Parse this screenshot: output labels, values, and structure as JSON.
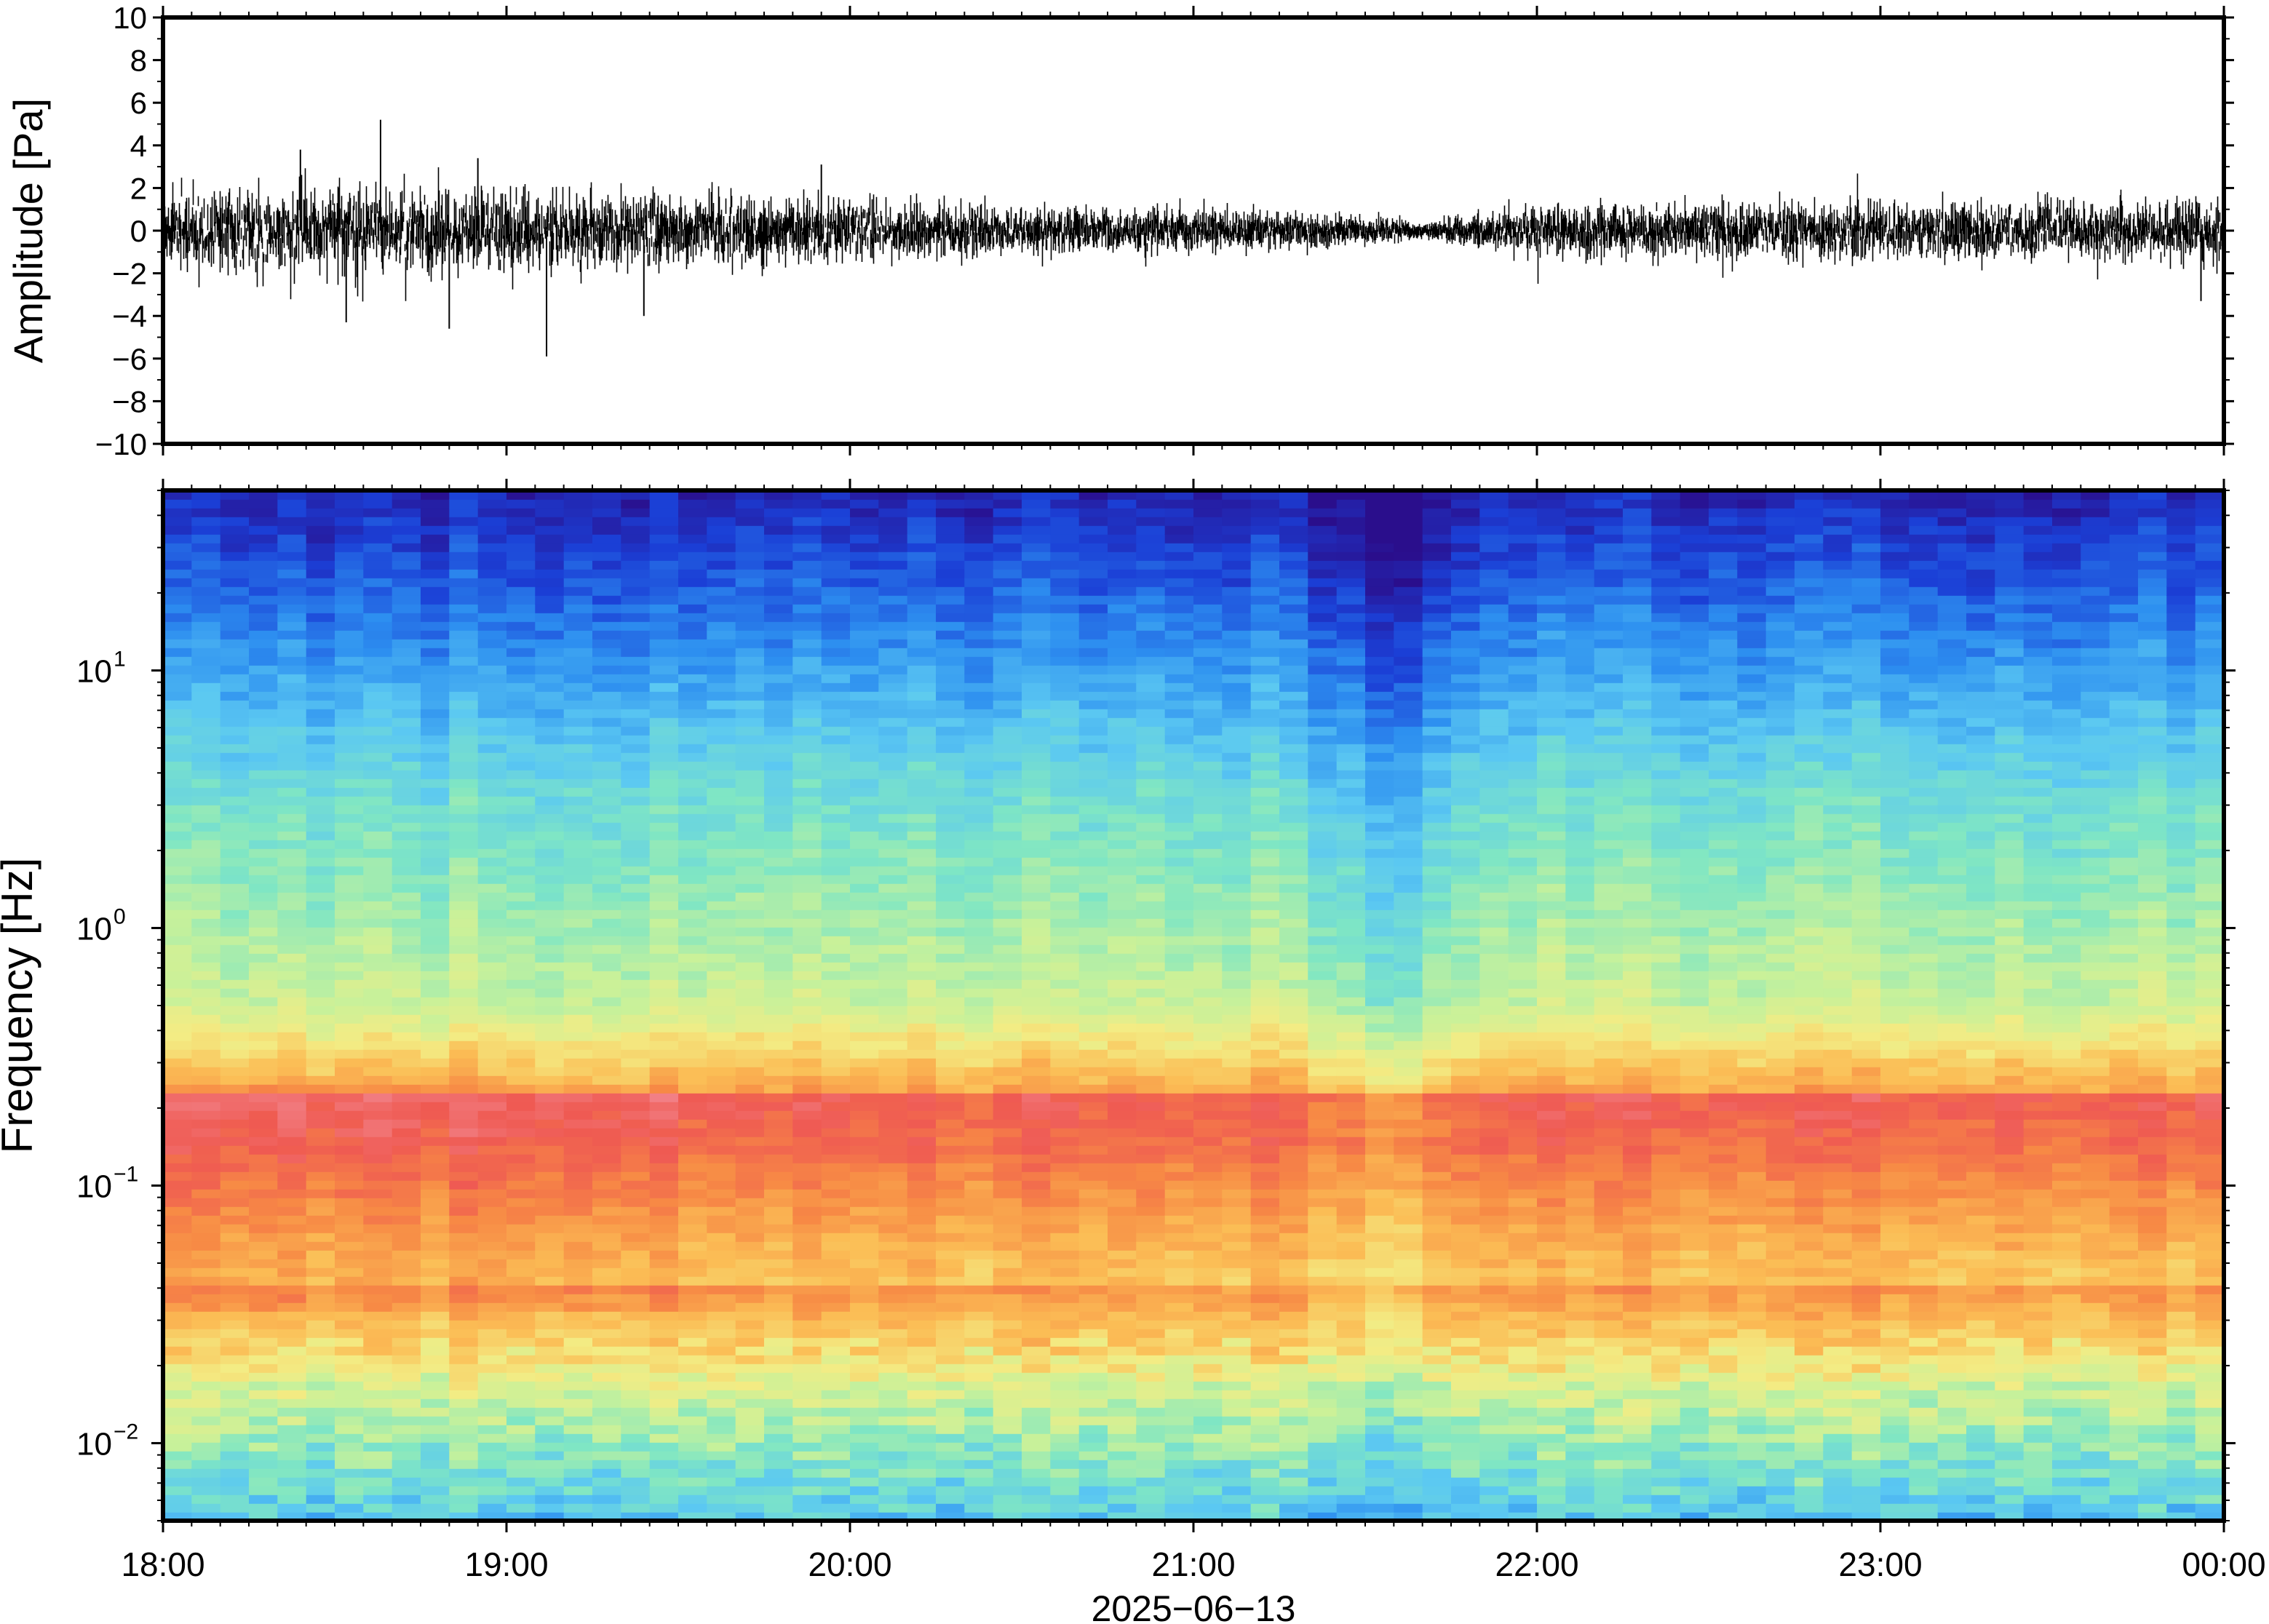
{
  "chart_data": [
    {
      "type": "line",
      "panel": "waveform",
      "ylabel": "Amplitude [Pa]",
      "ylim": [
        -10,
        10
      ],
      "yticks": [
        -10,
        -8,
        -6,
        -4,
        -2,
        0,
        2,
        4,
        6,
        8,
        10
      ],
      "ytick_labels": [
        "−10",
        "−8",
        "−6",
        "−4",
        "−2",
        "0",
        "2",
        "4",
        "6",
        "8",
        "10"
      ],
      "x_range_hours": [
        18,
        24
      ],
      "series": [
        {
          "values_note_free": true,
          "typical_envelope_pa": [
            {
              "t": "18:00",
              "amp": 2.2
            },
            {
              "t": "18:30",
              "amp": 2.4
            },
            {
              "t": "19:00",
              "amp": 2.3
            },
            {
              "t": "19:30",
              "amp": 1.9
            },
            {
              "t": "20:00",
              "amp": 1.6
            },
            {
              "t": "20:30",
              "amp": 1.3
            },
            {
              "t": "21:00",
              "amp": 1.1
            },
            {
              "t": "21:30",
              "amp": 0.7
            },
            {
              "t": "21:40",
              "amp": 0.3
            },
            {
              "t": "22:00",
              "amp": 1.3
            },
            {
              "t": "22:30",
              "amp": 1.5
            },
            {
              "t": "23:00",
              "amp": 1.6
            },
            {
              "t": "23:30",
              "amp": 1.6
            },
            {
              "t": "00:00",
              "amp": 1.6
            }
          ],
          "peaks_pa": [
            {
              "t": "18:38",
              "value": 5.2
            },
            {
              "t": "18:24",
              "value": 3.8
            },
            {
              "t": "18:55",
              "value": 3.4
            },
            {
              "t": "19:07",
              "value": -5.9
            },
            {
              "t": "18:50",
              "value": -4.6
            },
            {
              "t": "18:32",
              "value": -4.3
            },
            {
              "t": "19:24",
              "value": -4.0
            },
            {
              "t": "19:55",
              "value": 3.1
            },
            {
              "t": "23:56",
              "value": -3.3
            }
          ]
        }
      ],
      "grid": false
    },
    {
      "type": "heatmap",
      "panel": "spectrogram",
      "ylabel": "Frequency [Hz]",
      "yscale": "log",
      "ylim_hz": [
        0.005,
        50
      ],
      "yticks_hz": [
        0.01,
        0.1,
        1,
        10
      ],
      "ytick_labels": [
        {
          "base": "10",
          "exp": "−2"
        },
        {
          "base": "10",
          "exp": "−1"
        },
        {
          "base": "10",
          "exp": "0"
        },
        {
          "base": "10",
          "exp": "1"
        }
      ],
      "x_categories": [
        "18:00",
        "19:00",
        "20:00",
        "21:00",
        "22:00",
        "23:00",
        "00:00"
      ],
      "xlabel": "2025−06−13",
      "colormap": [
        "#2a0e8c",
        "#1b3fd6",
        "#2d8ff0",
        "#5bc8f2",
        "#7fe6c4",
        "#c8f19a",
        "#f3ec84",
        "#fbbd55",
        "#f78a45",
        "#ef5a52",
        "#f2838a"
      ],
      "grid": false
    }
  ]
}
